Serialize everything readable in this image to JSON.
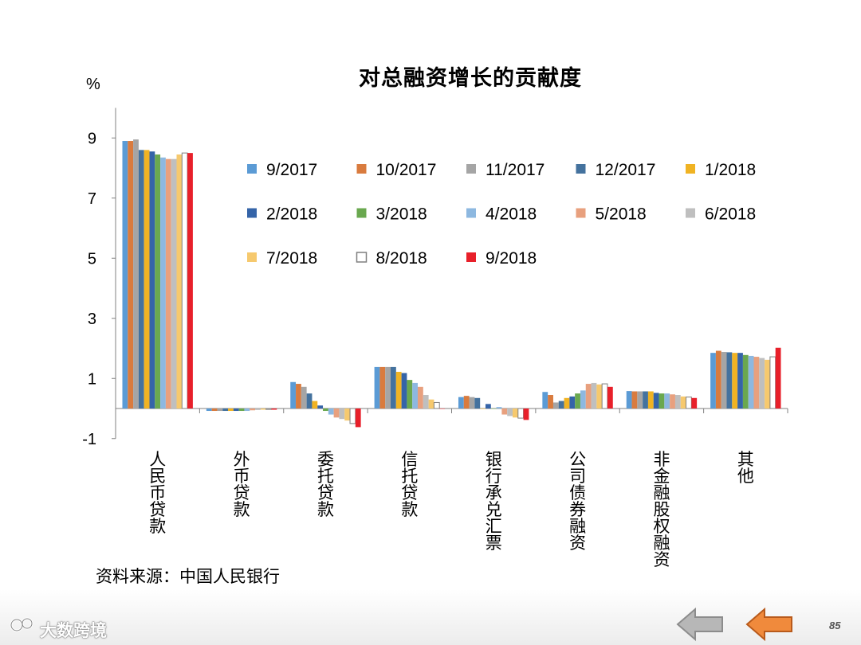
{
  "chart_data": {
    "type": "bar",
    "title": "对总融资增长的贡献度",
    "ylabel": "%",
    "ylim": [
      -1,
      10
    ],
    "yticks": [
      "9",
      "7",
      "5",
      "3",
      "1",
      "-1"
    ],
    "ytick_values": [
      9,
      7,
      5,
      3,
      1,
      -1
    ],
    "categories": [
      "人民币贷款",
      "外币贷款",
      "委托贷款",
      "信托贷款",
      "银行承兑汇票",
      "公司债券融资",
      "非金融股权融资",
      "其他"
    ],
    "legend_position": "top-right inside plot",
    "series": [
      {
        "name": "9/2017",
        "color": "#5b9bd5",
        "values": [
          8.9,
          -0.08,
          0.88,
          1.38,
          0.38,
          0.55,
          0.58,
          1.85
        ]
      },
      {
        "name": "10/2017",
        "color": "#d97b3e",
        "values": [
          8.9,
          -0.08,
          0.82,
          1.38,
          0.42,
          0.45,
          0.57,
          1.92
        ]
      },
      {
        "name": "11/2017",
        "color": "#a5a5a5",
        "values": [
          8.95,
          -0.08,
          0.72,
          1.38,
          0.38,
          0.2,
          0.57,
          1.88
        ]
      },
      {
        "name": "12/2017",
        "color": "#44729e",
        "values": [
          8.6,
          -0.08,
          0.5,
          1.38,
          0.35,
          0.25,
          0.57,
          1.87
        ]
      },
      {
        "name": "1/2018",
        "color": "#f0b323",
        "values": [
          8.6,
          -0.08,
          0.25,
          1.22,
          0.0,
          0.35,
          0.57,
          1.85
        ]
      },
      {
        "name": "2/2018",
        "color": "#3564a8",
        "values": [
          8.55,
          -0.08,
          0.1,
          1.18,
          0.15,
          0.4,
          0.52,
          1.85
        ]
      },
      {
        "name": "3/2018",
        "color": "#6aa84f",
        "values": [
          8.45,
          -0.08,
          -0.08,
          0.95,
          0.0,
          0.5,
          0.5,
          1.78
        ]
      },
      {
        "name": "4/2018",
        "color": "#8db8e0",
        "values": [
          8.35,
          -0.08,
          -0.2,
          0.85,
          0.05,
          0.6,
          0.5,
          1.75
        ]
      },
      {
        "name": "5/2018",
        "color": "#e8a07e",
        "values": [
          8.3,
          -0.06,
          -0.3,
          0.72,
          -0.2,
          0.82,
          0.47,
          1.72
        ]
      },
      {
        "name": "6/2018",
        "color": "#bfbfbf",
        "values": [
          8.3,
          -0.05,
          -0.35,
          0.45,
          -0.25,
          0.85,
          0.45,
          1.68
        ]
      },
      {
        "name": "7/2018",
        "color": "#f6c96e",
        "values": [
          8.45,
          -0.04,
          -0.4,
          0.3,
          -0.3,
          0.8,
          0.4,
          1.62
        ]
      },
      {
        "name": "8/2018",
        "color": "#ffffff",
        "stroke": "#7f7f7f",
        "values": [
          8.5,
          -0.03,
          -0.5,
          0.2,
          -0.32,
          0.82,
          0.38,
          1.72
        ]
      },
      {
        "name": "9/2018",
        "color": "#e8202a",
        "values": [
          8.5,
          -0.04,
          -0.62,
          0.0,
          -0.38,
          0.72,
          0.35,
          2.02
        ]
      }
    ]
  },
  "source_note": "资料来源：中国人民银行",
  "watermark": "大数跨境",
  "page_number": "85",
  "nav": {
    "prev_icon": "left-arrow-gray",
    "next_icon": "left-arrow-orange",
    "prev_color": "#b7b7b7",
    "next_color": "#f08a3c"
  }
}
